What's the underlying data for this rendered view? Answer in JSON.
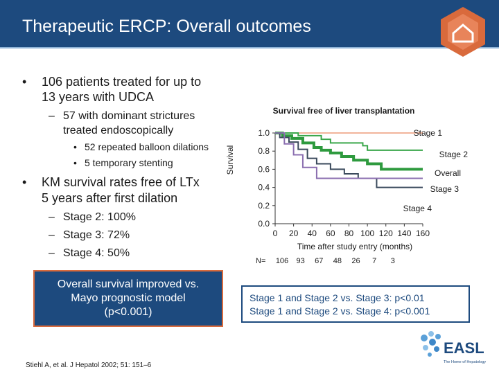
{
  "header": {
    "title": "Therapeutic ERCP: Overall outcomes"
  },
  "bullets": {
    "b1_line1": "106 patients treated for up to",
    "b1_line2": "13 years with UDCA",
    "sub1_line1": "57 with dominant strictures",
    "sub1_line2": "treated endoscopically",
    "subsub1": "52 repeated balloon dilations",
    "subsub2": "5 temporary stenting",
    "b2_line1": "KM survival rates free of LTx",
    "b2_line2": "5 years after first dilation",
    "stage2": "Stage 2: 100%",
    "stage3": "Stage 3: 72%",
    "stage4": "Stage 4: 50%",
    "dash": "–",
    "dot": "•"
  },
  "callout": {
    "text": "Overall survival improved vs.\nMayo prognostic model\n(p<0.001)"
  },
  "reference": "Stiehl A, et al. J Hepatol 2002; 51: 151–6",
  "stats": {
    "line1": "Stage 1 and Stage 2 vs. Stage 3: p<0.01",
    "line2": "Stage 1 and Stage 2 vs. Stage 4: p<0.001"
  },
  "logo": {
    "text": "EASL",
    "tagline": "The Home of Hepatology"
  },
  "colors": {
    "brand": "#1d4a7e",
    "accent": "#d96a3c",
    "header_line": "#8fb3d6"
  },
  "chart_data": {
    "type": "line",
    "step": true,
    "title": "Survival free of liver transplantation",
    "xlabel": "Time after study entry (months)",
    "ylabel": "Survival",
    "xlim": [
      0,
      160
    ],
    "ylim": [
      0,
      1.0
    ],
    "x_ticks": [
      0,
      20,
      40,
      60,
      80,
      100,
      120,
      140,
      160
    ],
    "x_tick_labels": [
      "0",
      "20",
      "40",
      "60",
      "80",
      "100",
      "120",
      "140",
      "160"
    ],
    "y_ticks": [
      0.0,
      0.2,
      0.4,
      0.6,
      0.8,
      1.0
    ],
    "y_tick_labels": [
      "0.0",
      "0.2",
      "0.4",
      "0.6",
      "0.8",
      "1.0"
    ],
    "at_risk_label": "N=",
    "at_risk_values": [
      "106",
      "93",
      "67",
      "48",
      "26",
      "7",
      "3"
    ],
    "at_risk_times": [
      0,
      20,
      40,
      60,
      80,
      100,
      120
    ],
    "series": [
      {
        "name": "Stage 1",
        "color": "#f2b49a",
        "width": 2,
        "x": [
          0,
          160
        ],
        "y": [
          1.0,
          1.0
        ]
      },
      {
        "name": "Stage 2",
        "color": "#3aa64a",
        "width": 2,
        "x": [
          0,
          25,
          50,
          60,
          82,
          95,
          100,
          160
        ],
        "y": [
          1.0,
          0.97,
          0.93,
          0.89,
          0.89,
          0.86,
          0.81,
          0.81
        ]
      },
      {
        "name": "Overall",
        "color": "#2e9a3e",
        "width": 4,
        "x": [
          0,
          8,
          18,
          30,
          42,
          50,
          60,
          72,
          85,
          100,
          115,
          160
        ],
        "y": [
          1.0,
          0.97,
          0.94,
          0.89,
          0.84,
          0.81,
          0.78,
          0.74,
          0.7,
          0.66,
          0.6,
          0.6
        ]
      },
      {
        "name": "Stage 3",
        "color": "#3b4a5c",
        "width": 2,
        "x": [
          0,
          5,
          15,
          25,
          35,
          45,
          60,
          75,
          90,
          110,
          160
        ],
        "y": [
          1.0,
          0.95,
          0.9,
          0.82,
          0.72,
          0.66,
          0.6,
          0.55,
          0.5,
          0.4,
          0.4
        ]
      },
      {
        "name": "Stage 4",
        "color": "#8b6fb0",
        "width": 2,
        "x": [
          0,
          10,
          20,
          30,
          45,
          60,
          160
        ],
        "y": [
          1.0,
          0.88,
          0.76,
          0.62,
          0.5,
          0.5,
          0.5
        ]
      }
    ],
    "series_labels": [
      "Stage 1",
      "Stage 2",
      "Overall",
      "Stage 3",
      "Stage 4"
    ]
  }
}
